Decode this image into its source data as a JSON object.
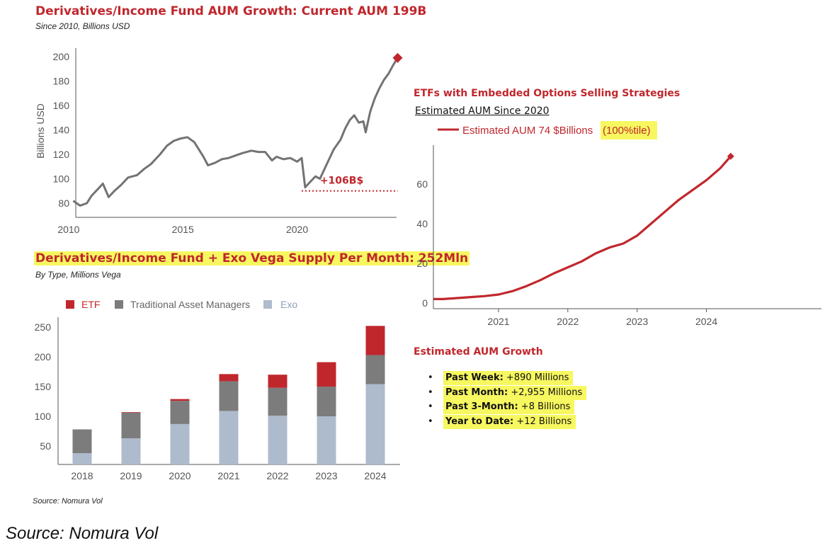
{
  "colors": {
    "red": "#c0272d",
    "grey": "#7c7c7c",
    "exo": "#aebbcc",
    "highlight": "#f7f760"
  },
  "panel1": {
    "title": "Derivatives/Income Fund AUM Growth: Current AUM 199B",
    "subtitle": "Since 2010, Billions USD",
    "annotation": "+106B$"
  },
  "panel2": {
    "title": "Derivatives/Income Fund + Exo Vega Supply Per Month: 252Mln",
    "subtitle": "By Type, Millions Vega"
  },
  "panel3": {
    "title": "ETFs with Embedded Options Selling Strategies",
    "subtitle": "Estimated AUM Since 2020",
    "legend_main": "Estimated AUM 74 $Billions ",
    "legend_hl": "(100%tile)"
  },
  "growth": {
    "title": "Estimated AUM Growth",
    "items": [
      {
        "label": "Past Week:",
        "value": " +890 Millions"
      },
      {
        "label": "Past Month:",
        "value": " +2,955 Millions"
      },
      {
        "label": "Past 3-Month:",
        "value": " +8 Billions"
      },
      {
        "label": "Year to Date:",
        "value": " +12 Billions"
      }
    ]
  },
  "source_small": "Source: Nomura Vol",
  "source_big": "Source: Nomura Vol",
  "chart_data": [
    {
      "type": "line",
      "title": "Derivatives/Income Fund AUM Growth: Current AUM 199B",
      "subtitle": "Since 2010, Billions USD",
      "xlabel": "",
      "ylabel": "Billions USD",
      "xlim": [
        2009.6,
        2024.6
      ],
      "ylim": [
        72,
        205
      ],
      "xticks": [
        2010,
        2015,
        2020
      ],
      "yticks": [
        80,
        100,
        120,
        140,
        160,
        180,
        200
      ],
      "series": [
        {
          "name": "AUM",
          "x": [
            2010.2,
            2010.5,
            2010.8,
            2011.0,
            2011.3,
            2011.5,
            2011.75,
            2012.0,
            2012.3,
            2012.6,
            2013.0,
            2013.3,
            2013.6,
            2014.0,
            2014.3,
            2014.6,
            2014.9,
            2015.2,
            2015.5,
            2015.7,
            2015.9,
            2016.1,
            2016.4,
            2016.7,
            2017.0,
            2017.3,
            2017.6,
            2018.0,
            2018.3,
            2018.6,
            2018.9,
            2019.1,
            2019.4,
            2019.7,
            2020.0,
            2020.2,
            2020.35,
            2020.5,
            2020.8,
            2021.0,
            2021.3,
            2021.6,
            2021.9,
            2022.1,
            2022.3,
            2022.5,
            2022.7,
            2022.9,
            2023.0,
            2023.2,
            2023.4,
            2023.6,
            2023.8,
            2024.0,
            2024.2,
            2024.4
          ],
          "values": [
            82,
            78,
            80,
            86,
            92,
            96,
            85,
            90,
            95,
            101,
            103,
            108,
            112,
            120,
            127,
            131,
            133,
            134,
            130,
            124,
            118,
            111,
            113,
            116,
            117,
            119,
            121,
            123,
            122,
            122,
            115,
            118,
            116,
            117,
            114,
            117,
            93,
            96,
            102,
            100,
            112,
            124,
            132,
            141,
            148,
            152,
            146,
            147,
            138,
            155,
            166,
            174,
            181,
            186,
            193,
            199
          ],
          "end_marker": "diamond"
        }
      ],
      "annotations": [
        {
          "text": "+106B$",
          "y_level": 93,
          "x_from": 2020.2,
          "x_to": 2024.4,
          "style": "dotted"
        }
      ]
    },
    {
      "type": "bar",
      "stacked": true,
      "title": "Derivatives/Income Fund + Exo Vega Supply Per Month: 252Mln",
      "subtitle": "By Type, Millions Vega",
      "categories": [
        "2018",
        "2019",
        "2020",
        "2021",
        "2022",
        "2023",
        "2024"
      ],
      "ylim": [
        25,
        262
      ],
      "yticks": [
        50,
        100,
        150,
        200,
        250
      ],
      "legend": "top",
      "series": [
        {
          "name": "Exo",
          "values": [
            38,
            63,
            87,
            109,
            101,
            100,
            154
          ]
        },
        {
          "name": "Traditional Asset Managers",
          "values": [
            40,
            43,
            39,
            50,
            47,
            50,
            49
          ]
        },
        {
          "name": "ETF",
          "values": [
            0,
            1,
            3,
            12,
            22,
            41,
            49
          ]
        }
      ]
    },
    {
      "type": "line",
      "title": "ETFs with Embedded Options Selling Strategies",
      "subtitle": "Estimated AUM Since 2020",
      "xlim": [
        2020.06,
        2025.66
      ],
      "ylim": [
        -3,
        78
      ],
      "xticks": [
        2021,
        2022,
        2023,
        2024
      ],
      "yticks": [
        0,
        20,
        40,
        60
      ],
      "series": [
        {
          "name": "Estimated AUM 74 $Billions (100%tile)",
          "x": [
            2020.06,
            2020.2,
            2020.4,
            2020.6,
            2020.8,
            2021.0,
            2021.2,
            2021.4,
            2021.6,
            2021.8,
            2022.0,
            2022.2,
            2022.4,
            2022.6,
            2022.8,
            2023.0,
            2023.2,
            2023.4,
            2023.6,
            2023.8,
            2024.0,
            2024.2,
            2024.35
          ],
          "values": [
            2,
            2,
            2.5,
            3,
            3.5,
            4.3,
            6,
            8.5,
            11.5,
            15,
            18,
            21,
            25,
            28,
            30,
            34,
            40,
            46,
            52,
            57,
            62,
            68,
            74
          ],
          "end_marker": "diamond"
        }
      ]
    }
  ]
}
